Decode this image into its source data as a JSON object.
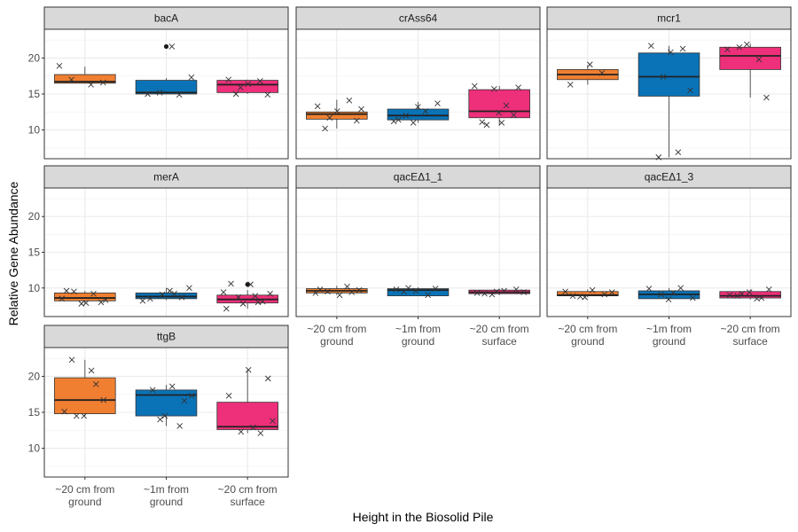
{
  "chart_data": {
    "type": "boxplot",
    "xlabel": "Height in the Biosolid Pile",
    "ylabel": "Relative Gene Abundance",
    "categories": [
      "~20 cm from ground",
      "~1m from ground",
      "~20 cm from surface"
    ],
    "category_labels": [
      [
        "~20 cm from",
        "ground"
      ],
      [
        "~1m from",
        "ground"
      ],
      [
        "~20 cm from",
        "surface"
      ]
    ],
    "category_colors": [
      "#F07F31",
      "#0A73B7",
      "#EE2F7A"
    ],
    "ylim": [
      6,
      24
    ],
    "yticks": [
      10,
      15,
      20
    ],
    "grid": true,
    "legend": "none",
    "panels": [
      {
        "name": "bacA",
        "boxes": [
          {
            "q1": 16.5,
            "median": 16.7,
            "q3": 17.7,
            "whisker_low": 16.5,
            "whisker_high": 18.8,
            "outliers": []
          },
          {
            "q1": 15.0,
            "median": 15.2,
            "q3": 16.9,
            "whisker_low": 15.0,
            "whisker_high": 17.2,
            "outliers": [
              21.6
            ]
          },
          {
            "q1": 15.2,
            "median": 16.3,
            "q3": 16.9,
            "whisker_low": 15.0,
            "whisker_high": 17.0,
            "outliers": []
          }
        ],
        "points": [
          [
            18.9,
            16.3,
            17.0,
            16.6
          ],
          [
            15.0,
            14.9,
            15.2,
            17.3,
            21.6
          ],
          [
            15.0,
            14.9,
            16.4,
            17.0,
            16.8,
            15.9
          ]
        ]
      },
      {
        "name": "crAss64",
        "boxes": [
          {
            "q1": 11.5,
            "median": 12.2,
            "q3": 12.5,
            "whisker_low": 10.2,
            "whisker_high": 14.2,
            "outliers": []
          },
          {
            "q1": 11.4,
            "median": 12.0,
            "q3": 12.9,
            "whisker_low": 11.0,
            "whisker_high": 13.9,
            "outliers": []
          },
          {
            "q1": 11.7,
            "median": 12.6,
            "q3": 15.6,
            "whisker_low": 10.6,
            "whisker_high": 16.1,
            "outliers": []
          }
        ],
        "points": [
          [
            10.2,
            11.3,
            12.6,
            13.3,
            14.1,
            11.7,
            12.9
          ],
          [
            11.0,
            11.2,
            12.6,
            12.0,
            13.7,
            13.2,
            11.4
          ],
          [
            11.0,
            11.1,
            12.1,
            15.7,
            16.1,
            13.4,
            10.7,
            15.9,
            12.4
          ]
        ]
      },
      {
        "name": "mcr1",
        "boxes": [
          {
            "q1": 17.0,
            "median": 17.7,
            "q3": 18.4,
            "whisker_low": 16.3,
            "whisker_high": 19.0,
            "outliers": []
          },
          {
            "q1": 14.7,
            "median": 17.4,
            "q3": 20.7,
            "whisker_low": 6.2,
            "whisker_high": 21.7,
            "outliers": []
          },
          {
            "q1": 18.4,
            "median": 20.3,
            "q3": 21.5,
            "whisker_low": 14.5,
            "whisker_high": 22.0,
            "outliers": []
          }
        ],
        "points": [
          [
            19.1,
            16.3,
            17.9
          ],
          [
            6.9,
            6.2,
            15.5,
            20.8,
            21.7,
            21.3,
            17.4
          ],
          [
            14.5,
            21.9,
            21.2,
            19.8,
            21.5
          ]
        ]
      },
      {
        "name": "merA",
        "boxes": [
          {
            "q1": 8.2,
            "median": 8.6,
            "q3": 9.3,
            "whisker_low": 7.8,
            "whisker_high": 9.6,
            "outliers": []
          },
          {
            "q1": 8.5,
            "median": 8.8,
            "q3": 9.3,
            "whisker_low": 8.3,
            "whisker_high": 10.0,
            "outliers": []
          },
          {
            "q1": 7.9,
            "median": 8.4,
            "q3": 9.0,
            "whisker_low": 7.1,
            "whisker_high": 9.7,
            "outliers": [
              10.5
            ]
          }
        ],
        "points": [
          [
            8.0,
            7.8,
            8.5,
            9.2,
            9.5,
            8.3,
            7.9,
            9.6
          ],
          [
            10.0,
            9.6,
            8.5,
            8.7,
            9.1,
            8.2,
            9.2
          ],
          [
            7.1,
            8.0,
            8.7,
            9.2,
            10.5,
            10.6,
            8.1,
            7.8,
            9.4,
            8.9
          ]
        ]
      },
      {
        "name": "qacEΔ1_1",
        "boxes": [
          {
            "q1": 9.3,
            "median": 9.6,
            "q3": 9.9,
            "whisker_low": 9.0,
            "whisker_high": 10.3,
            "outliers": []
          },
          {
            "q1": 8.9,
            "median": 9.7,
            "q3": 9.9,
            "whisker_low": 8.9,
            "whisker_high": 10.1,
            "outliers": []
          },
          {
            "q1": 9.2,
            "median": 9.4,
            "q3": 9.7,
            "whisker_low": 9.0,
            "whisker_high": 9.9,
            "outliers": []
          }
        ],
        "points": [
          [
            9.3,
            10.2,
            9.5,
            9.7,
            9.0,
            9.8,
            9.4
          ],
          [
            9.5,
            9.9,
            9.6,
            9.8,
            9.0,
            10.0
          ],
          [
            9.1,
            9.4,
            9.6,
            9.2,
            9.8,
            9.5,
            9.3
          ]
        ]
      },
      {
        "name": "qacEΔ1_3",
        "boxes": [
          {
            "q1": 8.9,
            "median": 9.0,
            "q3": 9.5,
            "whisker_low": 8.7,
            "whisker_high": 9.8,
            "outliers": []
          },
          {
            "q1": 8.5,
            "median": 9.1,
            "q3": 9.6,
            "whisker_low": 8.3,
            "whisker_high": 10.0,
            "outliers": []
          },
          {
            "q1": 8.6,
            "median": 8.9,
            "q3": 9.5,
            "whisker_low": 8.4,
            "whisker_high": 9.8,
            "outliers": []
          }
        ],
        "points": [
          [
            8.8,
            9.4,
            9.7,
            8.9,
            9.1,
            8.7,
            9.5
          ],
          [
            8.4,
            9.9,
            10.0,
            9.1,
            8.6,
            9.3
          ],
          [
            8.5,
            8.9,
            9.8,
            9.4,
            9.0,
            8.6,
            9.2
          ]
        ]
      },
      {
        "name": "ttgB",
        "boxes": [
          {
            "q1": 14.8,
            "median": 16.7,
            "q3": 19.8,
            "whisker_low": 14.5,
            "whisker_high": 22.3,
            "outliers": []
          },
          {
            "q1": 14.5,
            "median": 17.4,
            "q3": 18.1,
            "whisker_low": 13.1,
            "whisker_high": 18.8,
            "outliers": []
          },
          {
            "q1": 12.6,
            "median": 13.0,
            "q3": 16.4,
            "whisker_low": 12.1,
            "whisker_high": 20.9,
            "outliers": []
          }
        ],
        "points": [
          [
            20.8,
            22.3,
            16.7,
            14.5,
            15.1,
            18.9,
            14.5
          ],
          [
            13.1,
            14.0,
            17.3,
            18.6,
            18.1,
            16.6,
            14.5
          ],
          [
            19.7,
            20.9,
            17.3,
            12.1,
            12.3,
            13.8,
            12.9
          ]
        ]
      }
    ]
  }
}
